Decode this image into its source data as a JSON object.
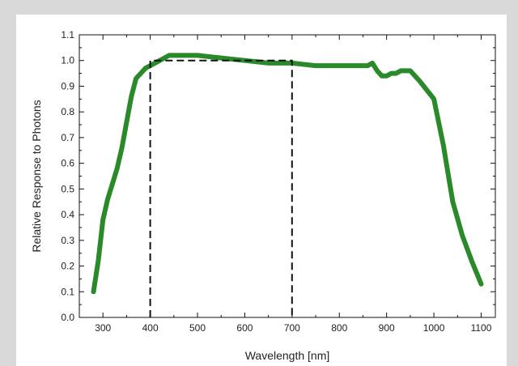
{
  "chart_data": {
    "type": "line",
    "title": "",
    "xlabel": "Wavelength [nm]",
    "ylabel": "Relative Response to Photons",
    "xlim": [
      250,
      1130
    ],
    "ylim": [
      0.0,
      1.1
    ],
    "xticks": [
      300,
      400,
      500,
      600,
      700,
      800,
      900,
      1000,
      1100
    ],
    "yticks": [
      0.0,
      0.1,
      0.2,
      0.3,
      0.4,
      0.5,
      0.6,
      0.7,
      0.8,
      0.9,
      1.0,
      1.1
    ],
    "xtick_labels": [
      "300",
      "400",
      "500",
      "600",
      "700",
      "800",
      "900",
      "1000",
      "1100"
    ],
    "ytick_labels": [
      "0.0",
      "0.1",
      "0.2",
      "0.3",
      "0.4",
      "0.5",
      "0.6",
      "0.7",
      "0.8",
      "0.9",
      "1.0",
      "1.1"
    ],
    "grid": false,
    "series": [
      {
        "color": "#2a8a2a",
        "style": "solid",
        "x": [
          280,
          290,
          300,
          310,
          320,
          330,
          340,
          350,
          360,
          370,
          380,
          390,
          400,
          410,
          420,
          430,
          440,
          450,
          470,
          500,
          550,
          600,
          650,
          700,
          750,
          800,
          830,
          860,
          870,
          880,
          890,
          900,
          910,
          920,
          930,
          950,
          970,
          1000,
          1020,
          1040,
          1060,
          1080,
          1100
        ],
        "y": [
          0.1,
          0.22,
          0.38,
          0.46,
          0.52,
          0.58,
          0.66,
          0.76,
          0.86,
          0.93,
          0.95,
          0.97,
          0.98,
          0.99,
          1.0,
          1.01,
          1.02,
          1.02,
          1.02,
          1.02,
          1.01,
          1.0,
          0.99,
          0.99,
          0.98,
          0.98,
          0.98,
          0.98,
          0.99,
          0.96,
          0.94,
          0.94,
          0.95,
          0.95,
          0.96,
          0.96,
          0.92,
          0.85,
          0.67,
          0.45,
          0.32,
          0.22,
          0.13
        ]
      },
      {
        "color": "#111111",
        "style": "dashed",
        "x": [
          400,
          400,
          700,
          700
        ],
        "y": [
          0.0,
          1.0,
          1.0,
          0.0
        ]
      }
    ]
  }
}
